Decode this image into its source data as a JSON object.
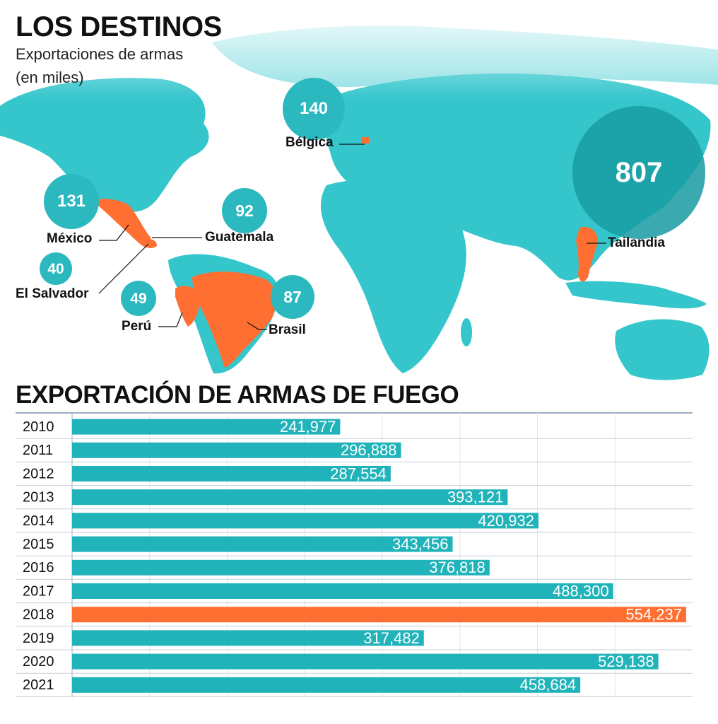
{
  "map": {
    "title": "LOS DESTINOS",
    "subtitle": "Exportaciones de armas",
    "unit": "(en miles)",
    "colors": {
      "land": "#35c6cc",
      "ocean": "#ffffff",
      "highlight": "#ff6f32",
      "bubble": "#2cb8bf"
    },
    "destinations": [
      {
        "country": "México",
        "value": "131"
      },
      {
        "country": "Guatemala",
        "value": "92"
      },
      {
        "country": "El Salvador",
        "value": "40"
      },
      {
        "country": "Perú",
        "value": "49"
      },
      {
        "country": "Brasil",
        "value": "87"
      },
      {
        "country": "Bélgica",
        "value": "140"
      },
      {
        "country": "Tailandia",
        "value": "807"
      }
    ]
  },
  "chart": {
    "title": "EXPORTACIÓN DE ARMAS DE FUEGO"
  },
  "chart_data": {
    "type": "bar",
    "orientation": "horizontal",
    "title": "EXPORTACIÓN DE ARMAS DE FUEGO",
    "categories": [
      "2010",
      "2011",
      "2012",
      "2013",
      "2014",
      "2015",
      "2016",
      "2017",
      "2018",
      "2019",
      "2020",
      "2021"
    ],
    "values": [
      241977,
      296888,
      287554,
      393121,
      420932,
      343456,
      376818,
      488300,
      554237,
      317482,
      529138,
      458684
    ],
    "labels": [
      "241,977",
      "296,888",
      "287,554",
      "393,121",
      "420,932",
      "343,456",
      "376,818",
      "488,300",
      "554,237",
      "317,482",
      "529,138",
      "458,684"
    ],
    "highlight_category": "2018",
    "colors": {
      "bar": "#20b3b9",
      "highlight": "#ff6f32"
    },
    "grid": true,
    "xlim": [
      0,
      560000
    ]
  }
}
